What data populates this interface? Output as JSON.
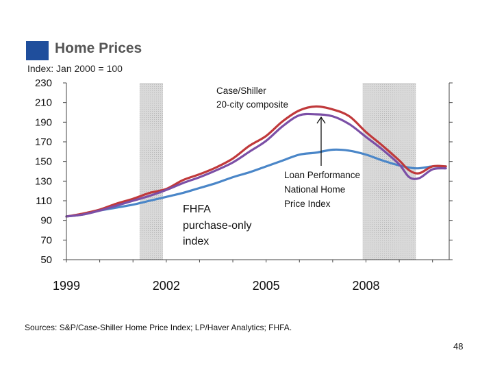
{
  "title": "Home Prices",
  "subtitle": "Index: Jan 2000 = 100",
  "source": "Sources: S&P/Case-Shiller Home Price Index; LP/Haver Analytics; FHFA.",
  "page_number": "48",
  "colors": {
    "title_square": "#1f4e9c",
    "case_shiller": "#c0393b",
    "loan_performance": "#7b4fa6",
    "fhfa": "#4a86c8",
    "recession_shading": "#d9d9d9"
  },
  "chart_data": {
    "type": "line",
    "title": "Home Prices",
    "ylabel": "Index: Jan 2000 = 100",
    "xlabel": "",
    "xlim": [
      1999,
      2010.5
    ],
    "ylim": [
      50,
      230
    ],
    "yticks": [
      230,
      210,
      190,
      170,
      150,
      130,
      110,
      90,
      70,
      50
    ],
    "xticks": [
      {
        "value": 1999,
        "label": "1999"
      },
      {
        "value": 2002,
        "label": "2002"
      },
      {
        "value": 2005,
        "label": "2005"
      },
      {
        "value": 2008,
        "label": "2008"
      }
    ],
    "recessions": [
      {
        "start": 2001.2,
        "end": 2001.9
      },
      {
        "start": 2007.9,
        "end": 2009.5
      }
    ],
    "series": [
      {
        "name": "Case/Shiller 20-city composite",
        "color": "#c0393b",
        "x": [
          1999,
          1999.5,
          2000,
          2000.5,
          2001,
          2001.5,
          2002,
          2002.5,
          2003,
          2003.5,
          2004,
          2004.5,
          2005,
          2005.5,
          2006,
          2006.5,
          2007,
          2007.5,
          2008,
          2008.5,
          2009,
          2009.3,
          2009.6,
          2010,
          2010.4
        ],
        "values": [
          94,
          97,
          101,
          107,
          112,
          118,
          122,
          131,
          137,
          144,
          153,
          166,
          176,
          191,
          202,
          206,
          203,
          196,
          180,
          166,
          151,
          141,
          138,
          145,
          145
        ]
      },
      {
        "name": "Loan Performance National Home Price Index",
        "color": "#7b4fa6",
        "x": [
          1999,
          1999.5,
          2000,
          2000.5,
          2001,
          2001.5,
          2002,
          2002.5,
          2003,
          2003.5,
          2004,
          2004.5,
          2005,
          2005.5,
          2006,
          2006.5,
          2007,
          2007.5,
          2008,
          2008.5,
          2009,
          2009.3,
          2009.6,
          2010,
          2010.4
        ],
        "values": [
          94,
          96,
          100,
          105,
          110,
          115,
          121,
          128,
          134,
          141,
          149,
          160,
          171,
          186,
          197,
          198,
          196,
          188,
          175,
          162,
          147,
          134,
          133,
          142,
          143
        ]
      },
      {
        "name": "FHFA purchase-only index",
        "color": "#4a86c8",
        "x": [
          1999,
          1999.5,
          2000,
          2000.5,
          2001,
          2001.5,
          2002,
          2002.5,
          2003,
          2003.5,
          2004,
          2004.5,
          2005,
          2005.5,
          2006,
          2006.5,
          2007,
          2007.5,
          2008,
          2008.5,
          2009,
          2009.5,
          2010,
          2010.4
        ],
        "values": [
          94,
          96,
          100,
          103,
          106,
          110,
          114,
          118,
          123,
          128,
          134,
          139,
          145,
          151,
          157,
          159,
          162,
          161,
          157,
          151,
          146,
          143,
          145,
          145
        ]
      }
    ],
    "annotations": {
      "case_shiller_label": [
        "Case/Shiller",
        "20-city composite"
      ],
      "loan_performance_label": [
        "Loan Performance",
        "National Home",
        "Price Index"
      ],
      "fhfa_label": [
        "FHFA",
        "purchase-only",
        "index"
      ]
    }
  }
}
